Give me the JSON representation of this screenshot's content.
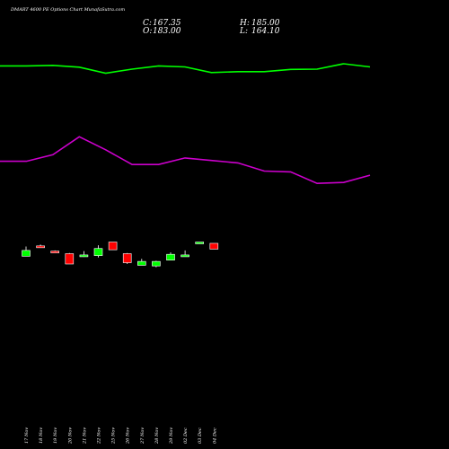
{
  "chart_data": {
    "type": "candlestick",
    "title": "DMART 4600 PE Options Chart MunafaSutra.com",
    "ohlc_summary": {
      "close_label": "C:",
      "close": "167.35",
      "open_label": "O:",
      "open": "183.00",
      "high_label": "H:",
      "high": "185.00",
      "low_label": "L:",
      "low": "164.10"
    },
    "categories": [
      "17 Nov",
      "18 Nov",
      "19 Nov",
      "20 Nov",
      "21 Nov",
      "22 Nov",
      "25 Nov",
      "26 Nov",
      "27 Nov",
      "28 Nov",
      "29 Nov",
      "02 Dec",
      "03 Dec",
      "04 Dec"
    ],
    "candles": [
      {
        "open": 0.62,
        "close": 0.71,
        "high": 0.77,
        "low": 0.62,
        "color": "#00ff00"
      },
      {
        "open": 0.78,
        "close": 0.76,
        "high": 0.8,
        "low": 0.75,
        "color": "#ff0000"
      },
      {
        "open": 0.7,
        "close": 0.7,
        "high": 0.71,
        "low": 0.7,
        "color": "#ff0000"
      },
      {
        "open": 0.66,
        "close": 0.5,
        "high": 0.67,
        "low": 0.5,
        "color": "#ff0000"
      },
      {
        "open": 0.64,
        "close": 0.62,
        "high": 0.7,
        "low": 0.61,
        "color": "#00ff00"
      },
      {
        "open": 0.63,
        "close": 0.74,
        "high": 0.79,
        "low": 0.6,
        "color": "#00ff00"
      },
      {
        "open": 0.84,
        "close": 0.72,
        "high": 0.84,
        "low": 0.72,
        "color": "#ff0000"
      },
      {
        "open": 0.66,
        "close": 0.52,
        "high": 0.67,
        "low": 0.5,
        "color": "#ff0000"
      },
      {
        "open": 0.48,
        "close": 0.54,
        "high": 0.58,
        "low": 0.48,
        "color": "#00ff00"
      },
      {
        "open": 0.47,
        "close": 0.54,
        "high": 0.55,
        "low": 0.45,
        "color": "#00ff00"
      },
      {
        "open": 0.56,
        "close": 0.65,
        "high": 0.68,
        "low": 0.56,
        "color": "#00ff00"
      },
      {
        "open": 0.63,
        "close": 0.64,
        "high": 0.71,
        "low": 0.62,
        "color": "#00ff00"
      },
      {
        "open": 0.84,
        "close": 0.84,
        "high": 0.84,
        "low": 0.84,
        "color": "#00ff00"
      },
      {
        "open": 0.82,
        "close": 0.73,
        "high": 0.82,
        "low": 0.73,
        "color": "#ff0000"
      }
    ],
    "indicator_green": {
      "color": "#00ff00",
      "values": [
        0.93,
        0.93,
        0.95,
        0.89,
        0.7,
        0.83,
        0.93,
        0.9,
        0.72,
        0.75,
        0.75,
        0.82,
        0.83,
        1.0,
        0.9
      ]
    },
    "indicator_magenta": {
      "color": "#cc00cc",
      "values": [
        0.62,
        0.62,
        0.7,
        0.92,
        0.76,
        0.58,
        0.58,
        0.66,
        0.63,
        0.6,
        0.5,
        0.49,
        0.35,
        0.36,
        0.45
      ]
    },
    "grid": false,
    "background": "#000000"
  }
}
